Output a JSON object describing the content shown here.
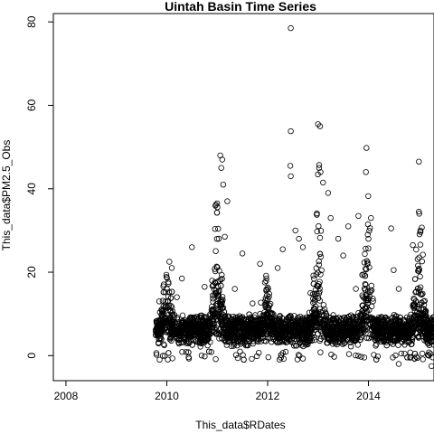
{
  "chart_data": {
    "type": "scatter",
    "title": "Uintah Basin Time Series",
    "xlabel": "This_data$RDates",
    "ylabel": "This_data$PM2.5_Obs",
    "x_ticks": [
      "2008",
      "2010",
      "2012",
      "2014"
    ],
    "y_ticks": [
      "0",
      "20",
      "40",
      "60",
      "80"
    ],
    "xlim": [
      2007.75,
      2015.3
    ],
    "ylim": [
      -6,
      82
    ],
    "grid": false,
    "legend": "none",
    "marker": "open-circle",
    "point_color": "#000000",
    "season_peaks": [
      {
        "x": 2010.0,
        "y": 23,
        "width": 0.2
      },
      {
        "x": 2011.0,
        "y": 48,
        "width": 0.16
      },
      {
        "x": 2011.9,
        "y": 25,
        "width": 0.2
      },
      {
        "x": 2012.45,
        "y": 79,
        "width": 0.1
      },
      {
        "x": 2013.0,
        "y": 55,
        "width": 0.16
      },
      {
        "x": 2013.95,
        "y": 50,
        "width": 0.14
      },
      {
        "x": 2015.0,
        "y": 47,
        "width": 0.14
      }
    ],
    "series": [
      {
        "points": [
          [
            2012.46,
            78.5
          ],
          [
            2013.0,
            55.5
          ],
          [
            2013.04,
            55.0
          ],
          [
            2012.46,
            53.8
          ],
          [
            2013.96,
            49.8
          ],
          [
            2011.06,
            48.0
          ],
          [
            2011.1,
            47.0
          ],
          [
            2011.08,
            45.0
          ],
          [
            2015.0,
            46.5
          ],
          [
            2012.45,
            45.5
          ],
          [
            2013.02,
            45.0
          ],
          [
            2013.05,
            44.0
          ],
          [
            2013.95,
            44.0
          ],
          [
            2012.46,
            43.0
          ],
          [
            2013.1,
            41.5
          ],
          [
            2011.12,
            41.0
          ],
          [
            2013.25,
            33.0
          ],
          [
            2013.6,
            31.0
          ],
          [
            2012.55,
            30.0
          ],
          [
            2012.62,
            28.0
          ],
          [
            2013.8,
            33.5
          ],
          [
            2011.2,
            37.0
          ],
          [
            2011.0,
            36.5
          ],
          [
            2013.2,
            39.0
          ],
          [
            2014.05,
            33.0
          ],
          [
            2014.45,
            30.5
          ],
          [
            2014.88,
            26.5
          ],
          [
            2014.0,
            28.0
          ],
          [
            2011.5,
            24.5
          ],
          [
            2011.15,
            28.5
          ],
          [
            2010.9,
            18.0
          ],
          [
            2011.85,
            22.0
          ],
          [
            2012.3,
            25.5
          ],
          [
            2012.7,
            26.0
          ],
          [
            2013.5,
            24.0
          ],
          [
            2014.5,
            20.5
          ],
          [
            2015.0,
            34.5
          ],
          [
            2015.03,
            30.0
          ],
          [
            2010.05,
            22.5
          ],
          [
            2010.1,
            21.0
          ],
          [
            2010.0,
            16.0
          ],
          [
            2010.5,
            26.0
          ],
          [
            2010.75,
            16.5
          ],
          [
            2011.7,
            12.5
          ],
          [
            2012.2,
            21.0
          ],
          [
            2014.6,
            16.0
          ],
          [
            2014.75,
            6.5
          ],
          [
            2014.6,
            -2.0
          ],
          [
            2014.65,
            0.5
          ],
          [
            2015.25,
            -2.5
          ],
          [
            2015.2,
            0.0
          ],
          [
            2010.2,
            14.0
          ],
          [
            2010.3,
            18.5
          ],
          [
            2011.35,
            16.0
          ],
          [
            2012.85,
            15.0
          ],
          [
            2013.4,
            28.0
          ],
          [
            2009.85,
            13.0
          ],
          [
            2009.9,
            10.0
          ],
          [
            2009.95,
            2.5
          ],
          [
            2013.75,
            16.0
          ]
        ]
      }
    ]
  }
}
